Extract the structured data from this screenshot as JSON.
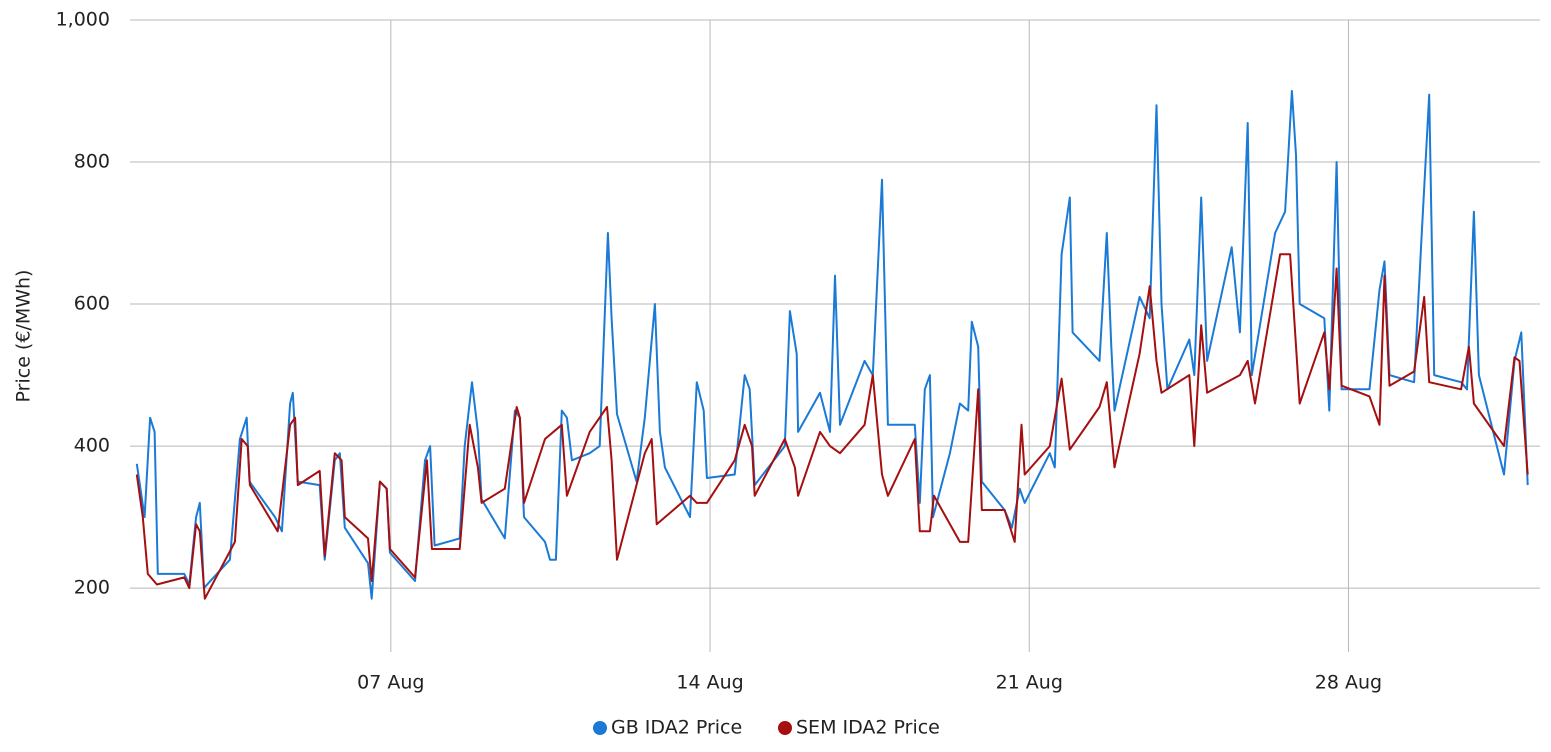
{
  "chart_data": {
    "type": "line",
    "y_label": "Price (€/MWh)",
    "xlim": [
      1.28,
      32.2
    ],
    "xticks": [
      {
        "value": 7,
        "label": "07 Aug"
      },
      {
        "value": 14,
        "label": "14 Aug"
      },
      {
        "value": 21,
        "label": "21 Aug"
      },
      {
        "value": 28,
        "label": "28 Aug"
      }
    ],
    "ylim": [
      110,
      1000
    ],
    "yticks": [
      200,
      400,
      600,
      800,
      {
        "value": 1000,
        "label": "1,000"
      }
    ],
    "grid": true,
    "legend": "bottom",
    "series": [
      {
        "name": "GB IDA2 Price",
        "color": "#1a7ad6",
        "x": [
          1.43,
          1.6,
          1.72,
          1.82,
          1.89,
          2.47,
          2.58,
          2.73,
          2.81,
          2.85,
          2.9,
          3.47,
          3.69,
          3.84,
          3.9,
          4.46,
          4.61,
          4.79,
          4.85,
          4.96,
          5.44,
          5.55,
          5.77,
          5.88,
          5.99,
          6.5,
          6.58,
          6.76,
          6.91,
          6.98,
          7.53,
          7.75,
          7.86,
          7.96,
          8.51,
          8.62,
          8.78,
          8.91,
          8.99,
          9.5,
          9.72,
          9.83,
          9.92,
          10.38,
          10.49,
          10.62,
          10.75,
          10.86,
          10.97,
          11.36,
          11.58,
          11.76,
          11.84,
          11.96,
          12.39,
          12.57,
          12.79,
          12.9,
          13.01,
          13.56,
          13.71,
          13.86,
          13.93,
          14.54,
          14.76,
          14.87,
          14.98,
          15.64,
          15.75,
          15.9,
          15.93,
          16.41,
          16.63,
          16.74,
          16.85,
          17.39,
          17.57,
          17.77,
          17.9,
          18.49,
          18.6,
          18.71,
          18.82,
          18.89,
          19.26,
          19.48,
          19.66,
          19.74,
          19.88,
          19.96,
          20.46,
          20.62,
          20.79,
          20.9,
          21.45,
          21.56,
          21.71,
          21.89,
          21.95,
          22.54,
          22.7,
          22.8,
          22.87,
          23.42,
          23.64,
          23.79,
          23.9,
          24.03,
          24.51,
          24.62,
          24.77,
          24.9,
          25.44,
          25.62,
          25.79,
          25.88,
          26.39,
          26.61,
          26.76,
          26.85,
          26.93,
          27.47,
          27.58,
          27.74,
          27.85,
          28.46,
          28.68,
          28.79,
          28.9,
          29.44,
          29.6,
          29.77,
          29.88,
          30.47,
          30.6,
          30.75,
          30.86,
          31.41,
          31.64,
          31.79,
          31.93
        ],
        "values": [
          375,
          300,
          440,
          420,
          220,
          220,
          205,
          300,
          320,
          270,
          200,
          240,
          410,
          440,
          350,
          300,
          280,
          460,
          475,
          350,
          345,
          240,
          380,
          390,
          285,
          235,
          185,
          350,
          340,
          250,
          210,
          380,
          400,
          260,
          270,
          400,
          490,
          420,
          325,
          270,
          450,
          440,
          300,
          265,
          240,
          240,
          450,
          440,
          380,
          390,
          400,
          700,
          580,
          445,
          350,
          440,
          600,
          420,
          370,
          300,
          490,
          450,
          355,
          360,
          500,
          480,
          345,
          400,
          590,
          530,
          420,
          475,
          420,
          640,
          430,
          520,
          500,
          775,
          430,
          430,
          320,
          480,
          500,
          300,
          390,
          460,
          450,
          575,
          540,
          350,
          310,
          285,
          340,
          320,
          390,
          370,
          670,
          750,
          560,
          520,
          700,
          540,
          450,
          610,
          580,
          880,
          600,
          480,
          550,
          500,
          750,
          520,
          680,
          560,
          855,
          500,
          700,
          730,
          900,
          810,
          600,
          580,
          450,
          800,
          480,
          480,
          620,
          660,
          500,
          490,
          690,
          895,
          500,
          490,
          480,
          730,
          500,
          360,
          520,
          560,
          345
        ]
      },
      {
        "name": "SEM IDA2 Price",
        "color": "#a50f0f",
        "x": [
          1.43,
          1.56,
          1.67,
          1.87,
          2.47,
          2.58,
          2.73,
          2.81,
          2.92,
          3.58,
          3.73,
          3.86,
          3.91,
          4.52,
          4.79,
          4.9,
          4.96,
          5.44,
          5.55,
          5.77,
          5.92,
          5.99,
          6.5,
          6.58,
          6.76,
          6.91,
          6.98,
          7.53,
          7.79,
          7.9,
          8.51,
          8.73,
          8.91,
          8.99,
          9.5,
          9.76,
          9.83,
          9.92,
          10.38,
          10.75,
          10.86,
          11.36,
          11.74,
          11.84,
          11.96,
          12.57,
          12.72,
          12.83,
          13.56,
          13.71,
          13.93,
          14.54,
          14.76,
          14.92,
          14.98,
          15.64,
          15.86,
          15.93,
          16.41,
          16.63,
          16.85,
          17.39,
          17.57,
          17.77,
          17.9,
          18.49,
          18.6,
          18.82,
          18.91,
          19.48,
          19.66,
          19.88,
          19.96,
          20.46,
          20.68,
          20.83,
          20.9,
          21.45,
          21.71,
          21.89,
          22.54,
          22.7,
          22.87,
          23.42,
          23.64,
          23.79,
          23.9,
          24.51,
          24.62,
          24.77,
          24.9,
          25.62,
          25.79,
          25.95,
          26.5,
          26.72,
          26.93,
          27.47,
          27.58,
          27.74,
          27.85,
          28.46,
          28.68,
          28.79,
          28.9,
          29.44,
          29.66,
          29.77,
          30.47,
          30.64,
          30.75,
          31.41,
          31.64,
          31.75,
          31.93
        ],
        "values": [
          360,
          300,
          220,
          205,
          215,
          200,
          290,
          280,
          185,
          265,
          410,
          400,
          345,
          280,
          430,
          440,
          345,
          365,
          245,
          390,
          380,
          300,
          270,
          210,
          350,
          340,
          255,
          215,
          380,
          255,
          255,
          430,
          370,
          320,
          340,
          455,
          440,
          320,
          410,
          430,
          330,
          420,
          455,
          380,
          240,
          390,
          410,
          290,
          330,
          320,
          320,
          380,
          430,
          400,
          330,
          410,
          370,
          330,
          420,
          400,
          390,
          430,
          500,
          360,
          330,
          410,
          280,
          280,
          330,
          265,
          265,
          480,
          310,
          310,
          265,
          430,
          360,
          400,
          495,
          395,
          455,
          490,
          370,
          530,
          625,
          520,
          475,
          500,
          400,
          570,
          475,
          500,
          520,
          460,
          670,
          670,
          460,
          560,
          480,
          650,
          485,
          470,
          430,
          640,
          485,
          505,
          610,
          490,
          480,
          540,
          460,
          400,
          525,
          520,
          360
        ]
      }
    ]
  }
}
